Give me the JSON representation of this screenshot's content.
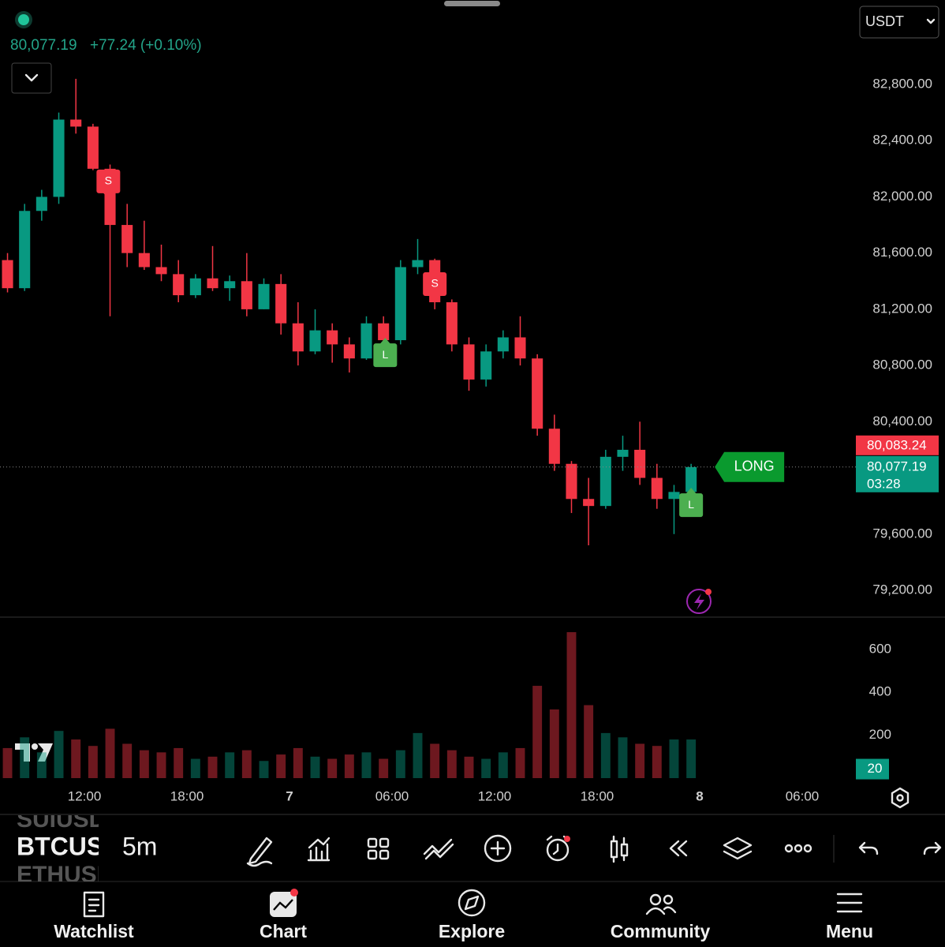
{
  "header": {
    "last": "80,077.19",
    "change": "+77.24 (+0.10%)",
    "currency": "USDT"
  },
  "chart_data": [
    {
      "type": "candlestick",
      "x": [
        7.5,
        8.5,
        9.5,
        10.5,
        11.5,
        12.5,
        13.5,
        14.5,
        15.5,
        16.5,
        17.5,
        18.5,
        19.5,
        20.5,
        21.5,
        22.5,
        23.5,
        24.5,
        25.5,
        26.5,
        27.5,
        28.5,
        29.5,
        30.5,
        31.5,
        32.5,
        33.5,
        34.5,
        35.5,
        36.5,
        37.5,
        38.5,
        39.5,
        40.5,
        41.5,
        42.5,
        43.5,
        44.5,
        45.5,
        46.5,
        47.5
      ],
      "open": [
        81550,
        81350,
        81900,
        82000,
        82550,
        82500,
        82200,
        81800,
        81600,
        81500,
        81450,
        81300,
        81420,
        81350,
        81400,
        81200,
        81380,
        81100,
        80900,
        81050,
        80950,
        80850,
        81100,
        80980,
        81500,
        81550,
        81250,
        80950,
        80700,
        80900,
        81000,
        80850,
        80350,
        80100,
        79850,
        79800,
        80150,
        80200,
        80000,
        79850,
        79900
      ],
      "high": [
        81600,
        81950,
        82050,
        82600,
        82840,
        82520,
        82230,
        81950,
        81830,
        81660,
        81550,
        81450,
        81650,
        81440,
        81600,
        81420,
        81450,
        81250,
        81200,
        81100,
        81000,
        81150,
        81150,
        81550,
        81700,
        81560,
        81270,
        81000,
        80950,
        81050,
        81150,
        80880,
        80450,
        80120,
        80000,
        80200,
        80300,
        80400,
        80100,
        79950,
        80100
      ],
      "low": [
        81320,
        81330,
        81830,
        81950,
        82450,
        82190,
        81150,
        81500,
        81480,
        81400,
        81250,
        81280,
        81330,
        81260,
        81150,
        81200,
        81020,
        80800,
        80880,
        80820,
        80750,
        80840,
        80950,
        80950,
        81450,
        81200,
        80900,
        80620,
        80650,
        80850,
        80800,
        80300,
        80050,
        79750,
        79520,
        79780,
        80050,
        79950,
        79780,
        79600,
        79820
      ],
      "close": [
        81350,
        81900,
        82000,
        82550,
        82500,
        82200,
        81800,
        81600,
        81500,
        81450,
        81300,
        81420,
        81350,
        81400,
        81200,
        81380,
        81100,
        80900,
        81050,
        80950,
        80850,
        81100,
        80980,
        81500,
        81550,
        81250,
        80950,
        80700,
        80900,
        81000,
        80850,
        80350,
        80100,
        79850,
        79800,
        80150,
        80200,
        80000,
        79850,
        79900,
        80077.19
      ],
      "up_color": "#089981",
      "down_color": "#f23645",
      "xlim": [
        7.06,
        57.14
      ],
      "xticks": [
        {
          "value": 12,
          "label": "12:00"
        },
        {
          "value": 18,
          "label": "18:00"
        },
        {
          "value": 24,
          "label": "7"
        },
        {
          "value": 30,
          "label": "06:00"
        },
        {
          "value": 36,
          "label": "12:00"
        },
        {
          "value": 42,
          "label": "18:00"
        },
        {
          "value": 48,
          "label": "8"
        },
        {
          "value": 54,
          "label": "06:00"
        }
      ],
      "ylim": [
        79009,
        83401
      ],
      "yticks": [
        {
          "value": 82800,
          "label": "82,800.00"
        },
        {
          "value": 82400,
          "label": "82,400.00"
        },
        {
          "value": 82000,
          "label": "82,000.00"
        },
        {
          "value": 81600,
          "label": "81,600.00"
        },
        {
          "value": 81200,
          "label": "81,200.00"
        },
        {
          "value": 80800,
          "label": "80,800.00"
        },
        {
          "value": 80400,
          "label": "80,400.00"
        },
        {
          "value": 79600,
          "label": "79,600.00"
        },
        {
          "value": 79200,
          "label": "79,200.00"
        }
      ],
      "price_labels": [
        {
          "value": 80083.24,
          "label": "80,083.24",
          "color": "#f23645"
        },
        {
          "value": 80077.19,
          "label": "80,077.19",
          "color": "#089981"
        }
      ],
      "countdown": "03:28",
      "long_tag": "LONG",
      "signals": [
        {
          "label": "S",
          "x": 13.4,
          "y": 82110,
          "color": "#f23645"
        },
        {
          "label": "L",
          "x": 29.6,
          "y": 80873,
          "color": "#4caf50"
        },
        {
          "label": "S",
          "x": 32.5,
          "y": 81379,
          "color": "#f23645"
        },
        {
          "label": "L",
          "x": 47.5,
          "y": 79806,
          "color": "#4caf50"
        }
      ]
    },
    {
      "type": "bar",
      "x": [
        7.5,
        8.5,
        9.5,
        10.5,
        11.5,
        12.5,
        13.5,
        14.5,
        15.5,
        16.5,
        17.5,
        18.5,
        19.5,
        20.5,
        21.5,
        22.5,
        23.5,
        24.5,
        25.5,
        26.5,
        27.5,
        28.5,
        29.5,
        30.5,
        31.5,
        32.5,
        33.5,
        34.5,
        35.5,
        36.5,
        37.5,
        38.5,
        39.5,
        40.5,
        41.5,
        42.5,
        43.5,
        44.5,
        45.5,
        46.5,
        47.5
      ],
      "values": [
        140,
        190,
        120,
        220,
        180,
        150,
        230,
        160,
        130,
        120,
        140,
        90,
        100,
        120,
        130,
        80,
        110,
        140,
        100,
        90,
        110,
        120,
        90,
        130,
        210,
        160,
        130,
        100,
        90,
        120,
        140,
        430,
        320,
        680,
        340,
        210,
        190,
        160,
        150,
        180,
        180
      ],
      "xlim": [
        7.06,
        57.14
      ],
      "ylim": [
        0,
        750
      ],
      "yticks": [
        200,
        400,
        600
      ],
      "current": 20,
      "up_color": "#089981",
      "down_color": "#f23645"
    }
  ],
  "toolbar": {
    "symbols": [
      "SUIUSD",
      "BTCUSD",
      "ETHUSD"
    ],
    "interval": "5m"
  },
  "nav": [
    "Watchlist",
    "Chart",
    "Explore",
    "Community",
    "Menu"
  ]
}
